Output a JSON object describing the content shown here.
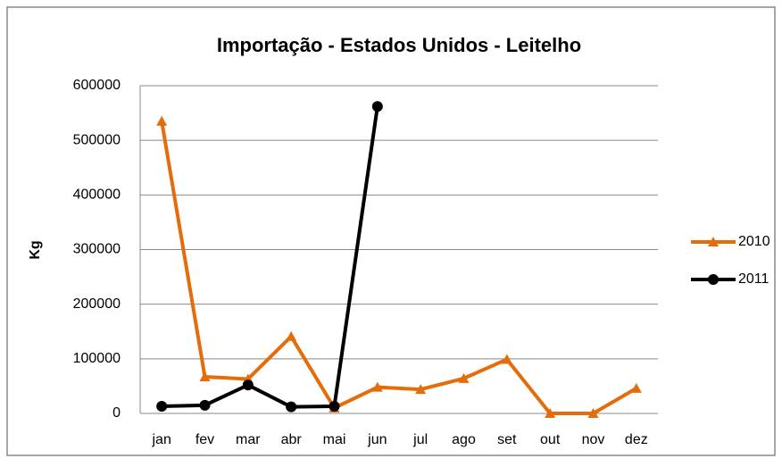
{
  "chart_data": {
    "type": "line",
    "title": "Importação - Estados Unidos - Leitelho",
    "y_label": "Kg",
    "categories": [
      "jan",
      "fev",
      "mar",
      "abr",
      "mai",
      "jun",
      "jul",
      "ago",
      "set",
      "out",
      "nov",
      "dez"
    ],
    "series": [
      {
        "name": "2010",
        "color": "#e46c0a",
        "marker": "triangle",
        "values": [
          535000,
          67000,
          63000,
          141000,
          10000,
          48000,
          44000,
          64000,
          99000,
          0,
          0,
          46000
        ]
      },
      {
        "name": "2011",
        "color": "#000000",
        "marker": "circle",
        "values": [
          13000,
          15000,
          52000,
          12000,
          13000,
          562000,
          null,
          null,
          null,
          null,
          null,
          null
        ]
      }
    ],
    "ylim": [
      0,
      600000
    ],
    "yticks": [
      0,
      100000,
      200000,
      300000,
      400000,
      500000,
      600000
    ],
    "grid": true,
    "legend": "right"
  }
}
